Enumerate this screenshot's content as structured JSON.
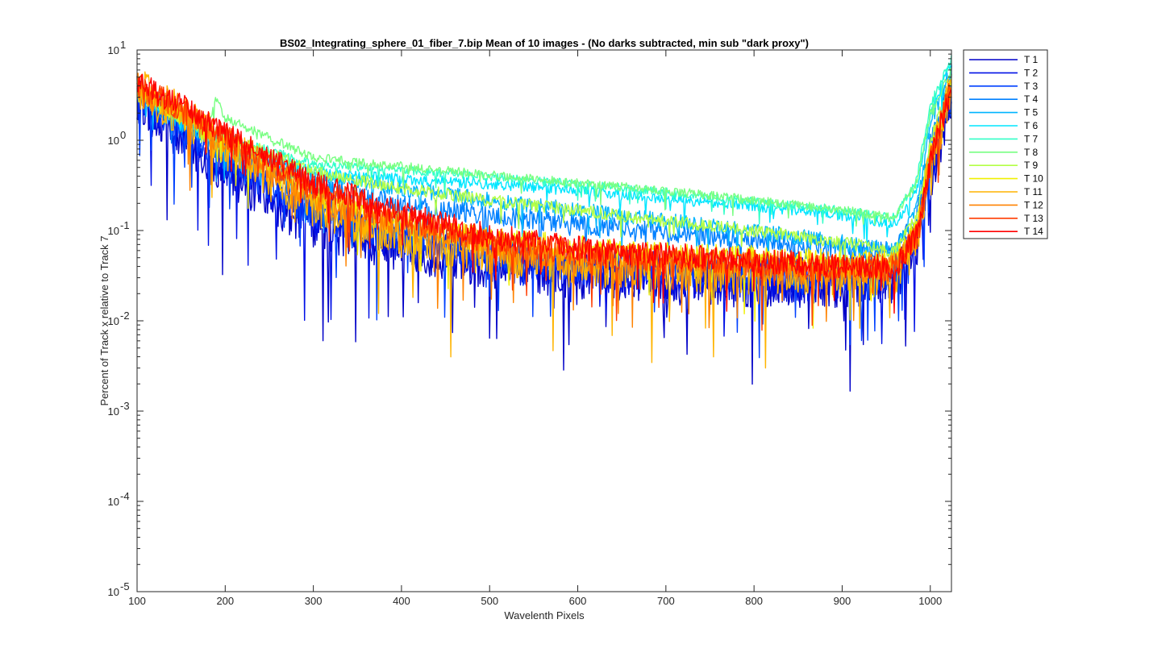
{
  "chart_data": {
    "type": "line",
    "title": "BS02_Integrating_sphere_01_fiber_7.bip  Mean of 10 images - (No darks subtracted, min sub \"dark proxy\")",
    "xlabel": "Wavelenth Pixels",
    "ylabel": "Percent of Track x relative to Track 7",
    "xlim": [
      100,
      1024
    ],
    "ylim_log10": [
      -5,
      1
    ],
    "yscale": "log",
    "x_ticks": [
      100,
      200,
      300,
      400,
      500,
      600,
      700,
      800,
      900,
      1000
    ],
    "x_tick_labels": [
      "100",
      "200",
      "300",
      "400",
      "500",
      "600",
      "700",
      "800",
      "900",
      "1000"
    ],
    "y_tick_exponents": [
      -5,
      -4,
      -3,
      -2,
      -1,
      0,
      1
    ],
    "y_tick_base": "10",
    "legend_position": "outside-right-top",
    "grid": false,
    "series": [
      {
        "name": "T 1",
        "color": "#0000c8",
        "points": [
          [
            100,
            3.0
          ],
          [
            150,
            1.2
          ],
          [
            200,
            0.5
          ],
          [
            300,
            0.12
          ],
          [
            400,
            0.07
          ],
          [
            500,
            0.045
          ],
          [
            600,
            0.035
          ],
          [
            700,
            0.03
          ],
          [
            800,
            0.028
          ],
          [
            900,
            0.028
          ],
          [
            960,
            0.03
          ],
          [
            985,
            0.08
          ],
          [
            1000,
            0.4
          ],
          [
            1024,
            3.0
          ]
        ],
        "noise": 0.55
      },
      {
        "name": "T 2",
        "color": "#0010e6",
        "points": [
          [
            100,
            3.2
          ],
          [
            150,
            1.4
          ],
          [
            200,
            0.6
          ],
          [
            300,
            0.15
          ],
          [
            400,
            0.08
          ],
          [
            500,
            0.05
          ],
          [
            600,
            0.04
          ],
          [
            700,
            0.033
          ],
          [
            800,
            0.03
          ],
          [
            900,
            0.03
          ],
          [
            960,
            0.032
          ],
          [
            985,
            0.09
          ],
          [
            1000,
            0.5
          ],
          [
            1024,
            4.0
          ]
        ],
        "noise": 0.5
      },
      {
        "name": "T 3",
        "color": "#0040ff",
        "points": [
          [
            100,
            3.3
          ],
          [
            150,
            1.5
          ],
          [
            200,
            0.65
          ],
          [
            300,
            0.18
          ],
          [
            400,
            0.09
          ],
          [
            500,
            0.06
          ],
          [
            600,
            0.045
          ],
          [
            700,
            0.04
          ],
          [
            800,
            0.036
          ],
          [
            900,
            0.035
          ],
          [
            960,
            0.036
          ],
          [
            985,
            0.1
          ],
          [
            1000,
            0.6
          ],
          [
            1024,
            4.5
          ]
        ],
        "noise": 0.4
      },
      {
        "name": "T 4",
        "color": "#0080ff",
        "points": [
          [
            100,
            3.5
          ],
          [
            150,
            1.6
          ],
          [
            200,
            0.8
          ],
          [
            300,
            0.3
          ],
          [
            400,
            0.2
          ],
          [
            500,
            0.15
          ],
          [
            600,
            0.12
          ],
          [
            700,
            0.1
          ],
          [
            800,
            0.08
          ],
          [
            900,
            0.065
          ],
          [
            960,
            0.06
          ],
          [
            985,
            0.15
          ],
          [
            1000,
            1.0
          ],
          [
            1024,
            5.5
          ]
        ],
        "noise": 0.22
      },
      {
        "name": "T 5",
        "color": "#00b4ff",
        "points": [
          [
            100,
            3.5
          ],
          [
            150,
            1.6
          ],
          [
            200,
            0.9
          ],
          [
            300,
            0.4
          ],
          [
            400,
            0.3
          ],
          [
            500,
            0.22
          ],
          [
            600,
            0.17
          ],
          [
            700,
            0.13
          ],
          [
            800,
            0.1
          ],
          [
            900,
            0.075
          ],
          [
            960,
            0.06
          ],
          [
            985,
            0.2
          ],
          [
            1000,
            1.5
          ],
          [
            1024,
            6.5
          ]
        ],
        "noise": 0.18
      },
      {
        "name": "T 6",
        "color": "#00e6ff",
        "points": [
          [
            100,
            3.5
          ],
          [
            150,
            1.7
          ],
          [
            200,
            1.0
          ],
          [
            300,
            0.45
          ],
          [
            400,
            0.38
          ],
          [
            500,
            0.33
          ],
          [
            600,
            0.28
          ],
          [
            700,
            0.23
          ],
          [
            800,
            0.19
          ],
          [
            900,
            0.15
          ],
          [
            960,
            0.12
          ],
          [
            985,
            0.3
          ],
          [
            1000,
            2.0
          ],
          [
            1024,
            7.5
          ]
        ],
        "noise": 0.12
      },
      {
        "name": "T 7",
        "color": "#32ffc8",
        "points": [
          [
            100,
            3.6
          ],
          [
            150,
            1.8
          ],
          [
            200,
            1.1
          ],
          [
            300,
            0.55
          ],
          [
            400,
            0.48
          ],
          [
            500,
            0.4
          ],
          [
            600,
            0.33
          ],
          [
            700,
            0.27
          ],
          [
            800,
            0.21
          ],
          [
            900,
            0.17
          ],
          [
            960,
            0.14
          ],
          [
            985,
            0.4
          ],
          [
            1000,
            2.5
          ],
          [
            1024,
            8.0
          ]
        ],
        "noise": 0.1
      },
      {
        "name": "T 8",
        "color": "#78ff82",
        "points": [
          [
            100,
            3.8
          ],
          [
            150,
            2.0
          ],
          [
            180,
            1.5
          ],
          [
            190,
            3.0
          ],
          [
            200,
            1.8
          ],
          [
            300,
            0.65
          ],
          [
            400,
            0.52
          ],
          [
            500,
            0.42
          ],
          [
            600,
            0.34
          ],
          [
            700,
            0.28
          ],
          [
            800,
            0.22
          ],
          [
            900,
            0.17
          ],
          [
            960,
            0.14
          ],
          [
            985,
            0.35
          ],
          [
            1000,
            2.0
          ],
          [
            1024,
            6.0
          ]
        ],
        "noise": 0.1
      },
      {
        "name": "T 9",
        "color": "#b4ff46",
        "points": [
          [
            100,
            3.5
          ],
          [
            150,
            1.8
          ],
          [
            200,
            1.2
          ],
          [
            300,
            0.45
          ],
          [
            400,
            0.3
          ],
          [
            500,
            0.22
          ],
          [
            600,
            0.17
          ],
          [
            700,
            0.13
          ],
          [
            800,
            0.1
          ],
          [
            900,
            0.075
          ],
          [
            960,
            0.06
          ],
          [
            985,
            0.15
          ],
          [
            1000,
            1.0
          ],
          [
            1024,
            5.0
          ]
        ],
        "noise": 0.14
      },
      {
        "name": "T 10",
        "color": "#f0f000",
        "points": [
          [
            100,
            3.8
          ],
          [
            150,
            2.0
          ],
          [
            200,
            1.0
          ],
          [
            300,
            0.25
          ],
          [
            400,
            0.12
          ],
          [
            500,
            0.08
          ],
          [
            600,
            0.065
          ],
          [
            700,
            0.055
          ],
          [
            800,
            0.05
          ],
          [
            900,
            0.045
          ],
          [
            960,
            0.045
          ],
          [
            985,
            0.1
          ],
          [
            1000,
            0.7
          ],
          [
            1024,
            4.5
          ]
        ],
        "noise": 0.3
      },
      {
        "name": "T 11",
        "color": "#ffb400",
        "points": [
          [
            100,
            4.0
          ],
          [
            150,
            2.0
          ],
          [
            200,
            0.9
          ],
          [
            300,
            0.2
          ],
          [
            400,
            0.09
          ],
          [
            500,
            0.06
          ],
          [
            600,
            0.045
          ],
          [
            700,
            0.04
          ],
          [
            800,
            0.036
          ],
          [
            900,
            0.035
          ],
          [
            960,
            0.036
          ],
          [
            985,
            0.08
          ],
          [
            1000,
            0.6
          ],
          [
            1024,
            4.0
          ]
        ],
        "noise": 0.5
      },
      {
        "name": "T 12",
        "color": "#ff8200",
        "points": [
          [
            100,
            4.0
          ],
          [
            150,
            2.2
          ],
          [
            200,
            1.0
          ],
          [
            300,
            0.25
          ],
          [
            400,
            0.12
          ],
          [
            500,
            0.07
          ],
          [
            600,
            0.05
          ],
          [
            700,
            0.045
          ],
          [
            800,
            0.04
          ],
          [
            900,
            0.038
          ],
          [
            960,
            0.04
          ],
          [
            985,
            0.09
          ],
          [
            1000,
            0.6
          ],
          [
            1024,
            4.0
          ]
        ],
        "noise": 0.35
      },
      {
        "name": "T 13",
        "color": "#ff3c00",
        "points": [
          [
            100,
            4.2
          ],
          [
            150,
            2.3
          ],
          [
            200,
            1.1
          ],
          [
            300,
            0.3
          ],
          [
            400,
            0.14
          ],
          [
            500,
            0.08
          ],
          [
            600,
            0.06
          ],
          [
            700,
            0.05
          ],
          [
            800,
            0.045
          ],
          [
            900,
            0.04
          ],
          [
            960,
            0.04
          ],
          [
            985,
            0.09
          ],
          [
            1000,
            0.6
          ],
          [
            1024,
            4.0
          ]
        ],
        "noise": 0.3
      },
      {
        "name": "T 14",
        "color": "#ff0000",
        "points": [
          [
            100,
            4.5
          ],
          [
            150,
            2.5
          ],
          [
            200,
            1.2
          ],
          [
            300,
            0.35
          ],
          [
            400,
            0.16
          ],
          [
            500,
            0.09
          ],
          [
            600,
            0.065
          ],
          [
            700,
            0.055
          ],
          [
            800,
            0.048
          ],
          [
            900,
            0.042
          ],
          [
            960,
            0.04
          ],
          [
            985,
            0.09
          ],
          [
            1000,
            0.6
          ],
          [
            1024,
            4.0
          ]
        ],
        "noise": 0.28
      }
    ]
  }
}
